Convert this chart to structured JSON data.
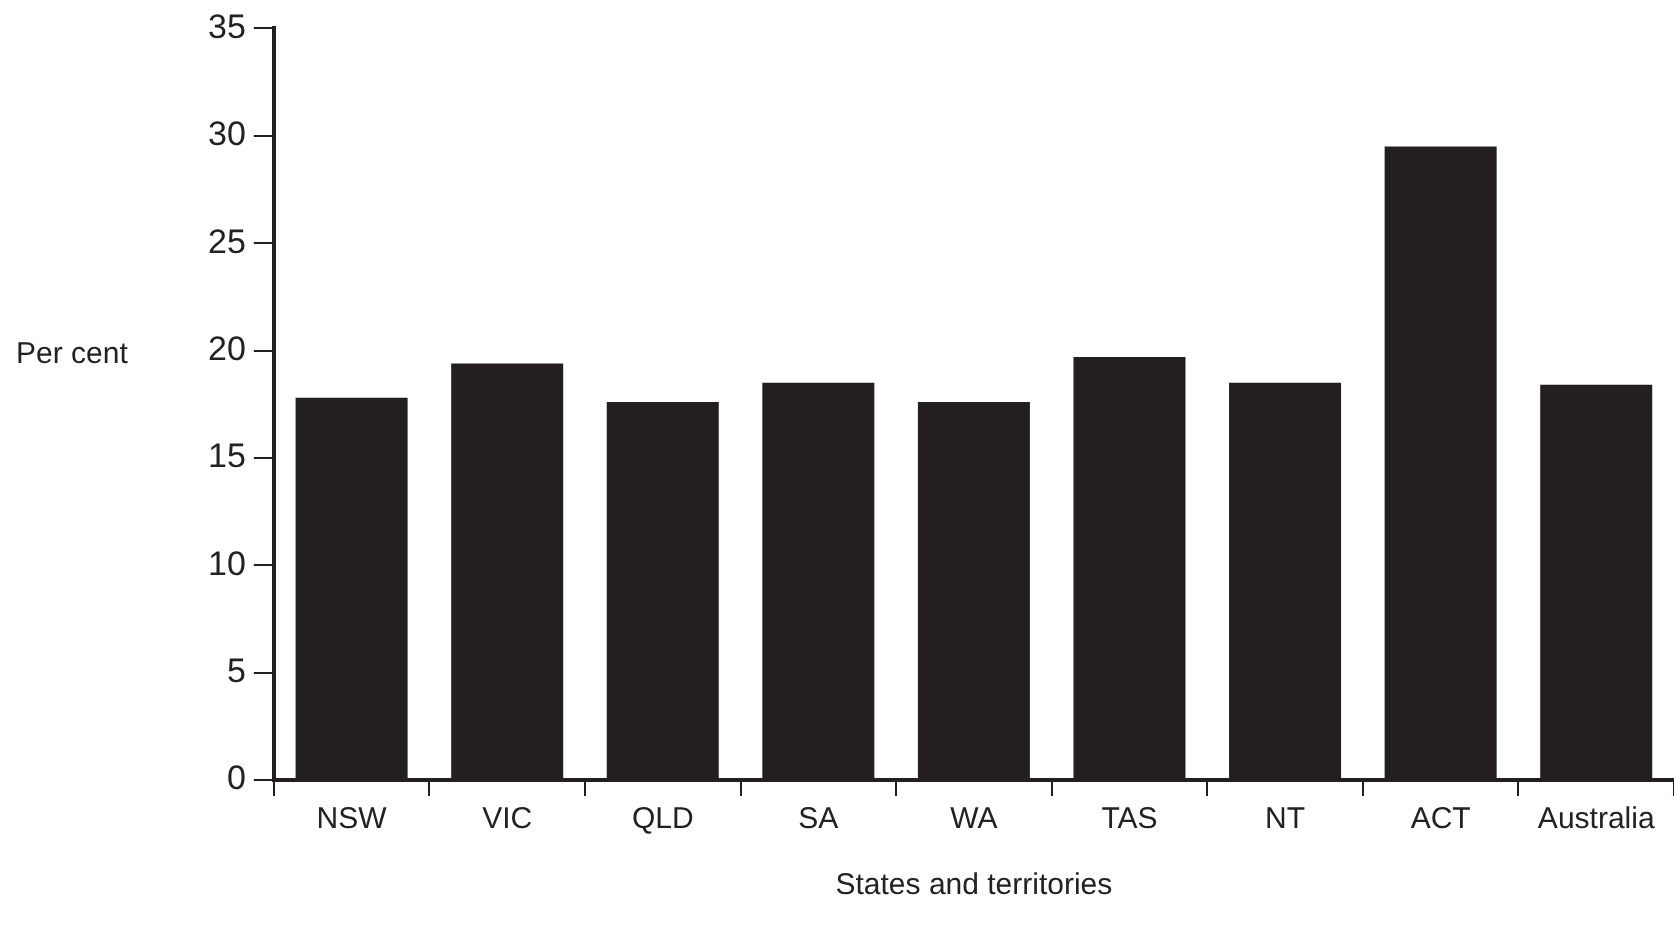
{
  "chart_data": {
    "type": "bar",
    "xlabel": "States and territories",
    "ylabel": "Per cent",
    "categories": [
      "NSW",
      "VIC",
      "QLD",
      "SA",
      "WA",
      "TAS",
      "NT",
      "ACT",
      "Australia"
    ],
    "values": [
      17.8,
      19.4,
      17.6,
      18.5,
      17.6,
      19.7,
      18.5,
      29.5,
      18.4
    ],
    "color": "#231f20",
    "ylim": [
      0,
      35
    ],
    "yticks": [
      0,
      5,
      10,
      15,
      20,
      25,
      30,
      35
    ],
    "grid": false,
    "legend": false
  }
}
